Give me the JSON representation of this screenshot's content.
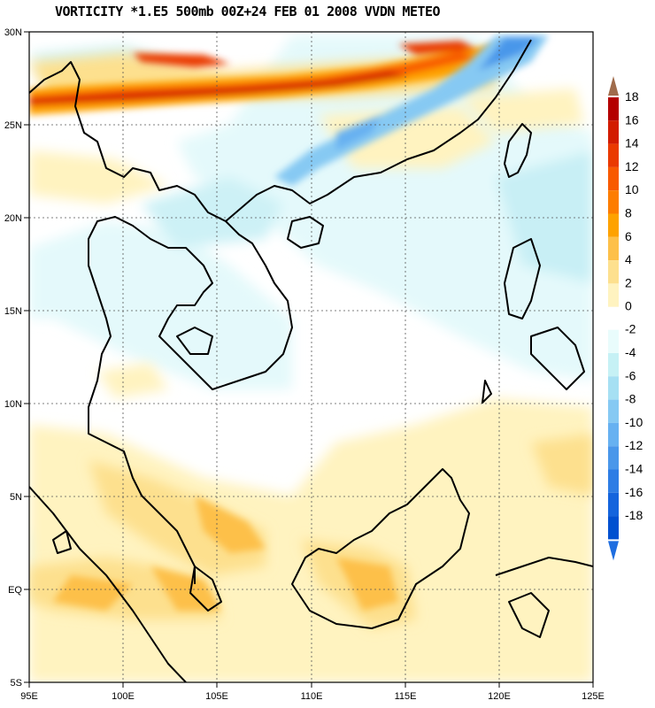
{
  "title": "VORTICITY *1.E5 500mb 00Z+24 FEB 01 2008 VVDN METEO",
  "axes": {
    "x_ticks": [
      "95E",
      "100E",
      "105E",
      "110E",
      "115E",
      "120E",
      "125E"
    ],
    "y_ticks": [
      "30N",
      "25N",
      "20N",
      "15N",
      "10N",
      "5N",
      "EQ",
      "5S"
    ],
    "lon_range": [
      95,
      125
    ],
    "lat_range": [
      -5,
      30
    ]
  },
  "colorbar": {
    "labels": [
      "18",
      "16",
      "14",
      "12",
      "10",
      "8",
      "6",
      "4",
      "2",
      "0",
      "-2",
      "-4",
      "-6",
      "-8",
      "-10",
      "-12",
      "-14",
      "-16",
      "-18"
    ],
    "positive_colors": [
      "#b40000",
      "#d21c00",
      "#ea3a00",
      "#f85a00",
      "#fd7d00",
      "#fea200",
      "#fdc04a",
      "#fde08e",
      "#fff3c0"
    ],
    "negative_colors": [
      "#e9fcfc",
      "#c6f1f5",
      "#a6e0f3",
      "#86c9f3",
      "#67b1f1",
      "#4a97ea",
      "#2e7de5",
      "#1464dd",
      "#0050d0"
    ],
    "top_arrow_color": "#a06c4c",
    "bottom_arrow_color": "#1f6ee0"
  },
  "grid": {
    "style": "dotted",
    "visible": true
  }
}
